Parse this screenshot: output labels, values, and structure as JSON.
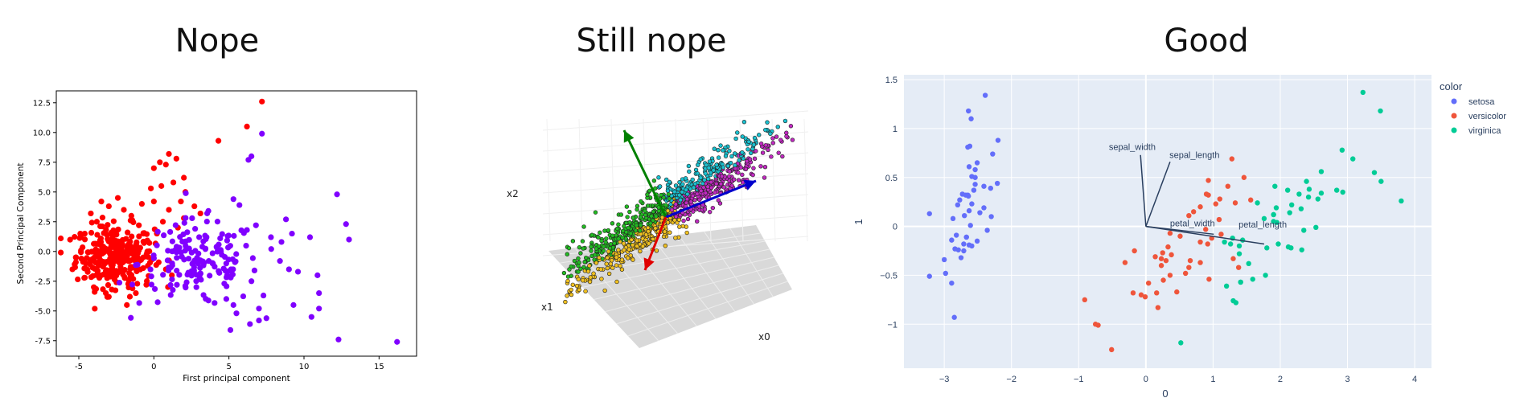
{
  "titles": {
    "left": "Nope",
    "middle": "Still nope",
    "right": "Good"
  },
  "colors": {
    "red": "#ff0000",
    "purple": "#8000ff",
    "setosa": "#636efa",
    "versicolor": "#ef553b",
    "virginica": "#00cc96",
    "plot_bg": "#e5ecf6",
    "arrow_green": "#008000",
    "arrow_blue": "#0000cc",
    "arrow_red": "#e00000"
  },
  "chart_data": [
    {
      "type": "scatter",
      "title": "",
      "xlabel": "First principal component",
      "ylabel": "Second Principal Component",
      "xlim": [
        -6.5,
        17.5
      ],
      "ylim": [
        -8.8,
        13.5
      ],
      "xticks": [
        -5,
        0,
        5,
        10,
        15
      ],
      "yticks": [
        -7.5,
        -5.0,
        -2.5,
        0.0,
        2.5,
        5.0,
        7.5,
        10.0,
        12.5
      ],
      "grid": false,
      "series": [
        {
          "color": "red",
          "cluster": {
            "n": 300,
            "cx": -2.6,
            "cy": -0.4,
            "sx": 1.3,
            "sy": 1.3
          },
          "points": [
            [
              -5.2,
              -0.5
            ],
            [
              -4.9,
              1.5
            ],
            [
              -4.6,
              -2.2
            ],
            [
              -4.2,
              3.2
            ],
            [
              -4.0,
              -3.0
            ],
            [
              -3.8,
              2.5
            ],
            [
              -3.5,
              4.2
            ],
            [
              -3.2,
              -3.5
            ],
            [
              -3.0,
              3.8
            ],
            [
              -2.8,
              -3.2
            ],
            [
              -2.4,
              4.5
            ],
            [
              -2.0,
              3.5
            ],
            [
              -1.8,
              -4.5
            ],
            [
              -1.5,
              3.0
            ],
            [
              -1.2,
              -3.5
            ],
            [
              -1.0,
              2.2
            ],
            [
              -0.8,
              4.0
            ],
            [
              -0.5,
              -2.8
            ],
            [
              -0.2,
              5.3
            ],
            [
              0.0,
              4.2
            ],
            [
              0.0,
              7.0
            ],
            [
              0.5,
              5.5
            ],
            [
              0.4,
              7.5
            ],
            [
              0.8,
              7.3
            ],
            [
              1.0,
              8.2
            ],
            [
              1.3,
              5.8
            ],
            [
              1.5,
              7.8
            ],
            [
              1.8,
              4.2
            ],
            [
              2.0,
              6.2
            ],
            [
              2.1,
              5.0
            ],
            [
              2.7,
              3.8
            ],
            [
              3.1,
              3.2
            ],
            [
              1.0,
              3.5
            ],
            [
              1.6,
              2.0
            ],
            [
              0.2,
              1.5
            ],
            [
              0.8,
              -1.5
            ],
            [
              -0.4,
              -1.2
            ],
            [
              2.0,
              2.8
            ],
            [
              4.3,
              9.3
            ],
            [
              6.2,
              10.5
            ],
            [
              7.2,
              12.6
            ],
            [
              1.2,
              -2.0
            ],
            [
              -1.6,
              -3.8
            ],
            [
              0.6,
              2.5
            ]
          ]
        },
        {
          "color": "purple",
          "cluster": {
            "n": 160,
            "cx": 3.0,
            "cy": -1.0,
            "sx": 2.0,
            "sy": 1.8
          },
          "points": [
            [
              7.2,
              9.9
            ],
            [
              6.5,
              8.0
            ],
            [
              6.3,
              7.7
            ],
            [
              5.7,
              3.9
            ],
            [
              5.3,
              4.4
            ],
            [
              6.8,
              2.2
            ],
            [
              7.8,
              1.2
            ],
            [
              8.8,
              2.7
            ],
            [
              8.5,
              0.8
            ],
            [
              9.0,
              -1.5
            ],
            [
              9.2,
              1.5
            ],
            [
              7.3,
              -3.7
            ],
            [
              7.0,
              -4.8
            ],
            [
              6.5,
              -2.5
            ],
            [
              7.0,
              -5.8
            ],
            [
              6.4,
              -6.1
            ],
            [
              5.5,
              -5.2
            ],
            [
              5.3,
              -4.5
            ],
            [
              5.1,
              -6.6
            ],
            [
              9.3,
              -4.5
            ],
            [
              10.5,
              -5.5
            ],
            [
              10.9,
              -2.0
            ],
            [
              11.0,
              -3.5
            ],
            [
              10.4,
              1.2
            ],
            [
              12.2,
              4.8
            ],
            [
              12.8,
              2.3
            ],
            [
              13.0,
              1.0
            ],
            [
              12.3,
              -7.4
            ],
            [
              16.2,
              -7.6
            ],
            [
              9.6,
              -1.7
            ],
            [
              8.4,
              -0.8
            ],
            [
              11.0,
              -4.8
            ]
          ]
        }
      ]
    },
    {
      "type": "scatter",
      "title": "",
      "xlabel": "x0",
      "ylabel": "x2",
      "zlabel": "x1",
      "series": [
        {
          "color": "green"
        },
        {
          "color": "gold"
        },
        {
          "color": "cyan"
        },
        {
          "color": "magenta"
        }
      ],
      "vectors": [
        {
          "color": "green",
          "direction": "up-left"
        },
        {
          "color": "blue",
          "direction": "right"
        },
        {
          "color": "red",
          "direction": "down"
        }
      ]
    },
    {
      "type": "scatter",
      "title": "",
      "xlabel": "0",
      "ylabel": "1",
      "xlim": [
        -3.6,
        4.25
      ],
      "ylim": [
        -1.45,
        1.55
      ],
      "xticks": [
        -3,
        -2,
        -1,
        0,
        1,
        2,
        3,
        4
      ],
      "yticks": [
        -1,
        -0.5,
        0,
        0.5,
        1,
        1.5
      ],
      "ytick_labels": [
        "−1",
        "−0.5",
        "0",
        "0.5",
        "1",
        "1.5"
      ],
      "xtick_labels": [
        "−3",
        "−2",
        "−1",
        "0",
        "1",
        "2",
        "3",
        "4"
      ],
      "grid": true,
      "legend": {
        "title": "color",
        "entries": [
          "setosa",
          "versicolor",
          "virginica"
        ],
        "placement": "right"
      },
      "series": [
        {
          "name": "setosa",
          "color": "setosa",
          "points": [
            [
              -2.68,
              0.32
            ],
            [
              -2.71,
              -0.18
            ],
            [
              -2.89,
              -0.14
            ],
            [
              -2.75,
              -0.32
            ],
            [
              -2.73,
              0.33
            ],
            [
              -2.28,
              0.74
            ],
            [
              -2.82,
              -0.09
            ],
            [
              -2.63,
              0.16
            ],
            [
              -2.89,
              -0.58
            ],
            [
              -2.67,
              -0.11
            ],
            [
              -2.51,
              0.65
            ],
            [
              -2.61,
              0.01
            ],
            [
              -2.79,
              -0.24
            ],
            [
              -3.22,
              -0.51
            ],
            [
              -2.64,
              1.18
            ],
            [
              -2.39,
              1.34
            ],
            [
              -2.62,
              0.82
            ],
            [
              -2.65,
              0.32
            ],
            [
              -2.2,
              0.88
            ],
            [
              -2.59,
              0.51
            ],
            [
              -2.31,
              0.39
            ],
            [
              -2.54,
              0.43
            ],
            [
              -3.22,
              0.13
            ],
            [
              -2.3,
              0.1
            ],
            [
              -2.36,
              -0.04
            ],
            [
              -2.51,
              -0.15
            ],
            [
              -2.47,
              0.14
            ],
            [
              -2.56,
              0.37
            ],
            [
              -2.64,
              0.31
            ],
            [
              -2.63,
              -0.19
            ],
            [
              -2.59,
              -0.2
            ],
            [
              -2.41,
              0.41
            ],
            [
              -2.65,
              0.81
            ],
            [
              -2.6,
              1.1
            ],
            [
              -2.67,
              -0.11
            ],
            [
              -2.87,
              0.08
            ],
            [
              -2.63,
              0.61
            ],
            [
              -2.8,
              0.22
            ],
            [
              -2.98,
              -0.48
            ],
            [
              -2.59,
              0.23
            ],
            [
              -2.77,
              0.27
            ],
            [
              -2.85,
              -0.93
            ],
            [
              -3.0,
              -0.34
            ],
            [
              -2.41,
              0.19
            ],
            [
              -2.21,
              0.44
            ],
            [
              -2.71,
              -0.25
            ],
            [
              -2.54,
              0.5
            ],
            [
              -2.84,
              -0.23
            ],
            [
              -2.54,
              0.58
            ],
            [
              -2.7,
              0.11
            ]
          ]
        },
        {
          "name": "versicolor",
          "color": "versicolor",
          "points": [
            [
              1.28,
              0.69
            ],
            [
              0.93,
              0.32
            ],
            [
              1.46,
              0.5
            ],
            [
              0.18,
              -0.83
            ],
            [
              1.09,
              0.07
            ],
            [
              0.64,
              -0.42
            ],
            [
              1.1,
              0.28
            ],
            [
              -0.75,
              -1.0
            ],
            [
              1.04,
              0.23
            ],
            [
              -0.01,
              -0.72
            ],
            [
              -0.51,
              -1.26
            ],
            [
              0.51,
              -0.1
            ],
            [
              0.26,
              -0.55
            ],
            [
              0.98,
              -0.12
            ],
            [
              -0.17,
              -0.25
            ],
            [
              0.93,
              0.47
            ],
            [
              0.66,
              -0.35
            ],
            [
              0.23,
              -0.33
            ],
            [
              0.94,
              -0.54
            ],
            [
              0.04,
              -0.58
            ],
            [
              1.12,
              -0.08
            ],
            [
              0.36,
              -0.07
            ],
            [
              1.3,
              -0.33
            ],
            [
              0.92,
              -0.18
            ],
            [
              0.71,
              0.15
            ],
            [
              0.9,
              0.33
            ],
            [
              1.33,
              0.24
            ],
            [
              1.56,
              0.27
            ],
            [
              0.81,
              -0.16
            ],
            [
              -0.31,
              -0.37
            ],
            [
              -0.07,
              -0.7
            ],
            [
              -0.19,
              -0.68
            ],
            [
              0.14,
              -0.31
            ],
            [
              1.38,
              -0.42
            ],
            [
              0.59,
              -0.48
            ],
            [
              0.81,
              0.2
            ],
            [
              1.22,
              0.41
            ],
            [
              0.81,
              -0.37
            ],
            [
              0.25,
              -0.27
            ],
            [
              0.16,
              -0.68
            ],
            [
              0.46,
              -0.67
            ],
            [
              0.89,
              -0.03
            ],
            [
              0.23,
              -0.4
            ],
            [
              -0.71,
              -1.01
            ],
            [
              0.36,
              -0.5
            ],
            [
              0.33,
              -0.21
            ],
            [
              0.38,
              -0.29
            ],
            [
              0.64,
              0.11
            ],
            [
              -0.91,
              -0.75
            ],
            [
              0.3,
              -0.35
            ]
          ]
        },
        {
          "name": "virginica",
          "color": "virginica",
          "points": [
            [
              2.53,
              -0.01
            ],
            [
              1.41,
              -0.57
            ],
            [
              2.61,
              0.34
            ],
            [
              1.97,
              -0.18
            ],
            [
              2.35,
              -0.04
            ],
            [
              3.4,
              0.55
            ],
            [
              0.52,
              -1.19
            ],
            [
              2.93,
              0.35
            ],
            [
              2.32,
              -0.24
            ],
            [
              2.92,
              0.78
            ],
            [
              1.66,
              0.24
            ],
            [
              1.8,
              -0.22
            ],
            [
              2.17,
              0.22
            ],
            [
              1.34,
              -0.78
            ],
            [
              1.59,
              -0.54
            ],
            [
              1.9,
              0.12
            ],
            [
              1.95,
              0.04
            ],
            [
              3.49,
              1.18
            ],
            [
              3.8,
              0.26
            ],
            [
              1.3,
              -0.76
            ],
            [
              2.43,
              0.38
            ],
            [
              1.2,
              -0.61
            ],
            [
              3.5,
              0.46
            ],
            [
              1.39,
              -0.2
            ],
            [
              2.28,
              0.33
            ],
            [
              2.61,
              0.56
            ],
            [
              1.26,
              -0.18
            ],
            [
              1.29,
              -0.12
            ],
            [
              2.12,
              -0.21
            ],
            [
              2.39,
              0.46
            ],
            [
              2.84,
              0.37
            ],
            [
              3.23,
              1.37
            ],
            [
              2.16,
              -0.22
            ],
            [
              1.44,
              -0.14
            ],
            [
              1.78,
              -0.5
            ],
            [
              3.08,
              0.69
            ],
            [
              2.14,
              0.14
            ],
            [
              1.9,
              0.05
            ],
            [
              1.17,
              -0.16
            ],
            [
              2.11,
              0.37
            ],
            [
              2.31,
              0.18
            ],
            [
              1.92,
              0.41
            ],
            [
              1.41,
              -0.57
            ],
            [
              2.56,
              0.28
            ],
            [
              2.42,
              0.3
            ],
            [
              1.94,
              0.19
            ],
            [
              1.53,
              -0.38
            ],
            [
              1.76,
              0.08
            ],
            [
              1.9,
              0.12
            ],
            [
              1.39,
              -0.28
            ]
          ]
        }
      ],
      "loadings": [
        {
          "label": "sepal_length",
          "x": 0.36,
          "y": 0.66
        },
        {
          "label": "sepal_width",
          "x": -0.08,
          "y": 0.73
        },
        {
          "label": "petal_length",
          "x": 1.76,
          "y": -0.18
        },
        {
          "label": "petal_width",
          "x": 1.01,
          "y": -0.08
        }
      ]
    }
  ]
}
